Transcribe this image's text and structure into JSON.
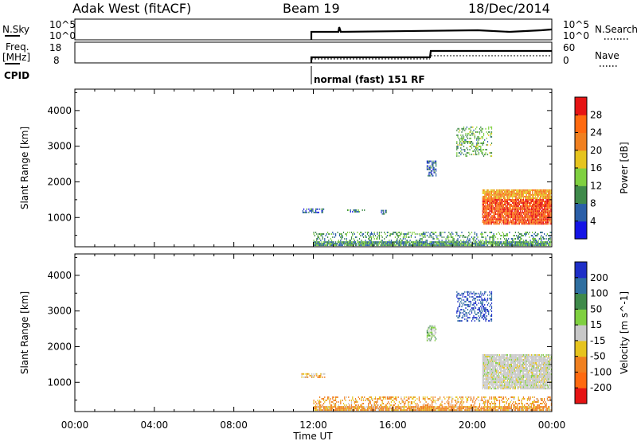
{
  "header": {
    "station": "Adak West (fitACF)",
    "beam": "Beam 19",
    "date": "18/Dec/2014"
  },
  "top_panels": {
    "nsky_label": "N.Sky",
    "nsky_ticks": [
      "10^5",
      "10^0"
    ],
    "nsearch_label": "N.Search",
    "nsearch_ticks": [
      "10^5",
      "10^0"
    ],
    "freq_label": "Freq.",
    "freq_unit": "[MHz]",
    "freq_ticks": [
      "18",
      "8"
    ],
    "nave_label": "Nave",
    "nave_ticks": [
      "60",
      "0"
    ],
    "cpid_label": "CPID",
    "cpid_text": "normal (fast) 151 RF"
  },
  "axes": {
    "ylabel": "Slant Range [km]",
    "xlabel": "Time UT",
    "y_ticks": [
      "1000",
      "2000",
      "3000",
      "4000"
    ],
    "x_ticks": [
      "00:00",
      "04:00",
      "08:00",
      "12:00",
      "16:00",
      "20:00",
      "00:00"
    ]
  },
  "chart_data": [
    {
      "type": "heatmap",
      "title": "",
      "quantity": "Power",
      "colorbar_label": "Power [dB]",
      "colorbar_ticks": [
        "4",
        "8",
        "12",
        "16",
        "20",
        "24",
        "28"
      ],
      "colors": [
        "#1414e6",
        "#2b5fa8",
        "#3f8a4a",
        "#7fd040",
        "#e6c41e",
        "#f08020",
        "#ff6a10",
        "#e61414"
      ],
      "xlabel": "Time UT",
      "ylabel": "Slant Range [km]",
      "xlim_hours": [
        0,
        24
      ],
      "ylim_km": [
        180,
        4600
      ],
      "scatter_regions": [
        {
          "name": "near-range clutter",
          "t_start": 12.0,
          "t_end": 24.0,
          "r_start": 200,
          "r_end": 600,
          "typical_dB": 10
        },
        {
          "name": "patch A",
          "t_start": 11.4,
          "t_end": 12.6,
          "r_start": 1120,
          "r_end": 1250,
          "typical_dB": 6
        },
        {
          "name": "patch B",
          "t_start": 13.7,
          "t_end": 14.6,
          "r_start": 1140,
          "r_end": 1230,
          "typical_dB": 8
        },
        {
          "name": "patch C",
          "t_start": 15.4,
          "t_end": 15.7,
          "r_start": 1080,
          "r_end": 1180,
          "typical_dB": 6
        },
        {
          "name": "echo D",
          "t_start": 17.7,
          "t_end": 18.2,
          "r_start": 2150,
          "r_end": 2600,
          "typical_dB": 6
        },
        {
          "name": "main ionospheric band",
          "t_start": 20.5,
          "t_end": 24.0,
          "r_start": 800,
          "r_end": 1750,
          "typical_dB": 25
        },
        {
          "name": "far range",
          "t_start": 19.2,
          "t_end": 21.0,
          "r_start": 2700,
          "r_end": 3550,
          "typical_dB": 12
        }
      ]
    },
    {
      "type": "heatmap",
      "title": "",
      "quantity": "Velocity",
      "colorbar_label": "Velocity [m s^-1]",
      "colorbar_ticks": [
        "200",
        "100",
        "50",
        "15",
        "-15",
        "-50",
        "-100",
        "-200"
      ],
      "colors": [
        "#1e2fc8",
        "#2f6fa0",
        "#3f8a4a",
        "#7fd040",
        "#c8c8c8",
        "#e6c41e",
        "#f08020",
        "#ff6a10",
        "#e61414"
      ],
      "xlabel": "Time UT",
      "ylabel": "Slant Range [km]",
      "xlim_hours": [
        0,
        24
      ],
      "ylim_km": [
        180,
        4600
      ],
      "scatter_regions": [
        {
          "name": "near-range clutter",
          "t_start": 12.0,
          "t_end": 24.0,
          "r_start": 200,
          "r_end": 600,
          "typical_velocity": -40
        },
        {
          "name": "patch A",
          "t_start": 11.4,
          "t_end": 12.6,
          "r_start": 1120,
          "r_end": 1250,
          "typical_velocity": -30
        },
        {
          "name": "echo D",
          "t_start": 17.7,
          "t_end": 18.2,
          "r_start": 2150,
          "r_end": 2600,
          "typical_velocity": 20
        },
        {
          "name": "main ionospheric band",
          "t_start": 20.5,
          "t_end": 24.0,
          "r_start": 800,
          "r_end": 1750,
          "typical_velocity": 0
        },
        {
          "name": "far range",
          "t_start": 19.2,
          "t_end": 21.0,
          "r_start": 2700,
          "r_end": 3550,
          "typical_velocity": 150
        }
      ]
    }
  ]
}
